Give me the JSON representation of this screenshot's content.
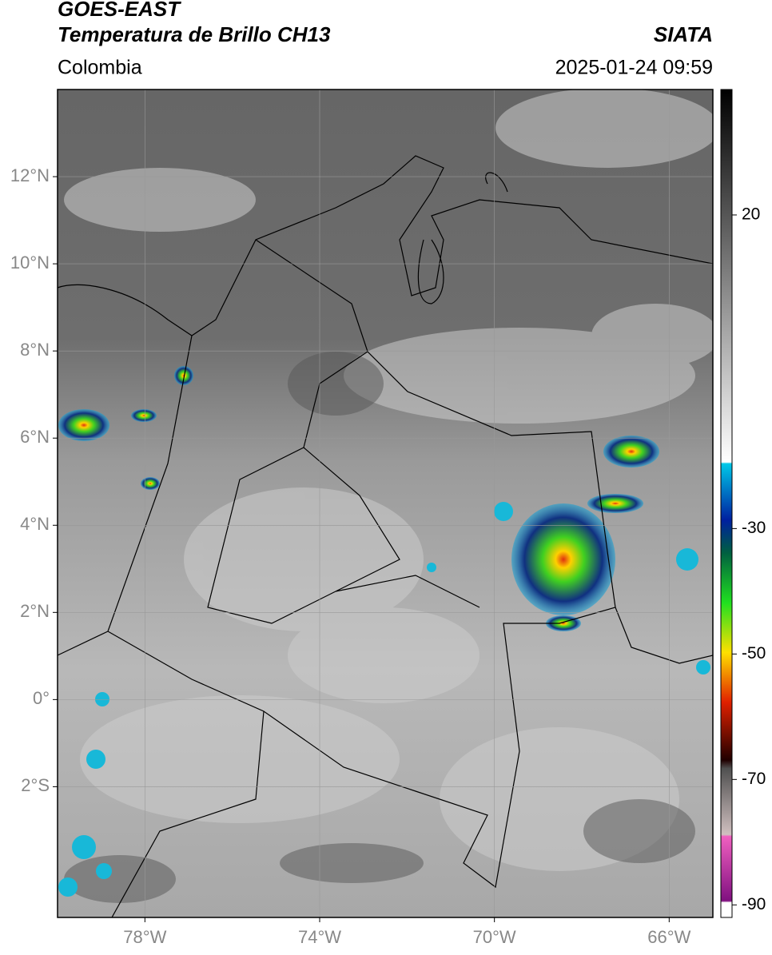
{
  "header": {
    "title_line1": "GOES-EAST",
    "title_line2": "Temperatura de Brillo CH13",
    "region": "Colombia",
    "source": "SIATA",
    "datetime": "2025-01-24 09:59"
  },
  "map": {
    "xlim": [
      -80,
      -65
    ],
    "ylim": [
      -5,
      14
    ],
    "lon_ticks": [
      {
        "value": -78,
        "label": "78°W"
      },
      {
        "value": -74,
        "label": "74°W"
      },
      {
        "value": -70,
        "label": "70°W"
      },
      {
        "value": -66,
        "label": "66°W"
      }
    ],
    "lat_ticks": [
      {
        "value": -2,
        "label": "2°S"
      },
      {
        "value": 0,
        "label": "0°"
      },
      {
        "value": 2,
        "label": "2°N"
      },
      {
        "value": 4,
        "label": "4°N"
      },
      {
        "value": 6,
        "label": "6°N"
      },
      {
        "value": 8,
        "label": "8°N"
      },
      {
        "value": 10,
        "label": "10°N"
      },
      {
        "value": 12,
        "label": "12°N"
      }
    ]
  },
  "colorbar": {
    "lim": [
      -92,
      40
    ],
    "ticks": [
      20,
      -30,
      -50,
      -70,
      -90
    ]
  }
}
